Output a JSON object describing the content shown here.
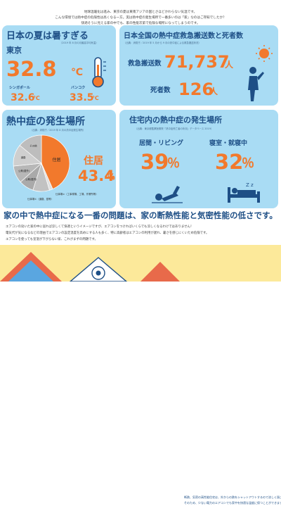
{
  "intro": {
    "line1": "地球温暖化は進み、東京の夏は東南アジアの国とさほどかわらない気温です。",
    "line2": "こんな環境では熱中症の危険性は高くなる一方。実は熱中症の発生場所で一番多いのは「家」なのはご存知でしたか？",
    "line3": "快適そうに見える家の中でも、家の性能次第で危険な場所になってしまうのです。"
  },
  "card1": {
    "title": "日本の夏は暑すぎる",
    "source": "（2019 年 8 月の月最高平均気温）",
    "tokyo_label": "東京",
    "tokyo_value": "32.8",
    "tokyo_unit": "℃",
    "singapore_label": "シンガポール",
    "singapore_value": "32.6",
    "singapore_unit": "℃",
    "bangkok_label": "バンコク",
    "bangkok_value": "33.5",
    "bangkok_unit": "℃"
  },
  "card2": {
    "title": "日本全国の熱中症救急搬送数と死者数",
    "source": "（出典：消防庁／2019 年 5 月から 9 月の熱中症による救急搬送状況）",
    "transport_label": "救急搬送数",
    "transport_value": "71,737",
    "transport_unit": "人",
    "death_label": "死者数",
    "death_value": "126",
    "death_unit": "人"
  },
  "card3": {
    "title": "熱中症の発生場所",
    "source": "（出典：消防庁／2019 年 8 月の熱中症発生場所）",
    "highlight_label": "住居",
    "highlight_value": "43.4",
    "highlight_unit": "％",
    "note_other": "仕事場②（工事現場、工場、作業所等）",
    "note_other2": "仕事場①（道路、庭等）"
  },
  "card4": {
    "title": "住宅内の熱中症の発生場所",
    "source": "（出典：東京都監察医務院「熱中症死亡者の状況」データベース 2019）",
    "living_label": "居間・リビング",
    "living_value": "39",
    "living_unit": "％",
    "bedroom_label": "寝室・就寝中",
    "bedroom_value": "32",
    "bedroom_unit": "％"
  },
  "chart_data": {
    "type": "pie",
    "title": "熱中症の発生場所",
    "categories": [
      "住居",
      "仕事場②（工事現場、工場、作業所等）",
      "仕事場①（道路、庭等）",
      "公衆(屋内)",
      "公衆(屋外)",
      "道路",
      "その他"
    ],
    "values": [
      43.4,
      2,
      9.5,
      8.5,
      10,
      12.6,
      14
    ],
    "colors": [
      "#f2792c",
      "#e0e0e0",
      "#c2c2c2",
      "#aaaaaa",
      "#b7b7b7",
      "#cfcfcf",
      "#bdbdbd"
    ],
    "visible_labels": [
      "住居",
      "道路",
      "公衆(屋外)",
      "公衆(屋内)",
      "その他"
    ]
  },
  "main": {
    "headline": "家の中で熱中症になる一番の問題は、家の断熱性能と気密性能の低さです。",
    "body1": "エアコンの効いた家の中に居れば涼しくて快適というイメージですが、エアコンをつければいくらでも涼しくなるわけではありません！",
    "body2": "電気代が気になるなどの理由でエアコンの設定温度を高めにする人も多く、特に高齢者はエアコンの利用が遅れ、暑さを感じにくいため危険です。",
    "body3": "エアコンを使っても室温が下がらない家、これがまずの問題です。"
  },
  "bubble": {
    "line1": "断熱、気密の高性能住宅は、外からの熱をシャットアウトするので涼しく過ごせます。",
    "line2": "そのため、少ない電力のエアコンでも家中を快適な温度に保つことができます。"
  }
}
